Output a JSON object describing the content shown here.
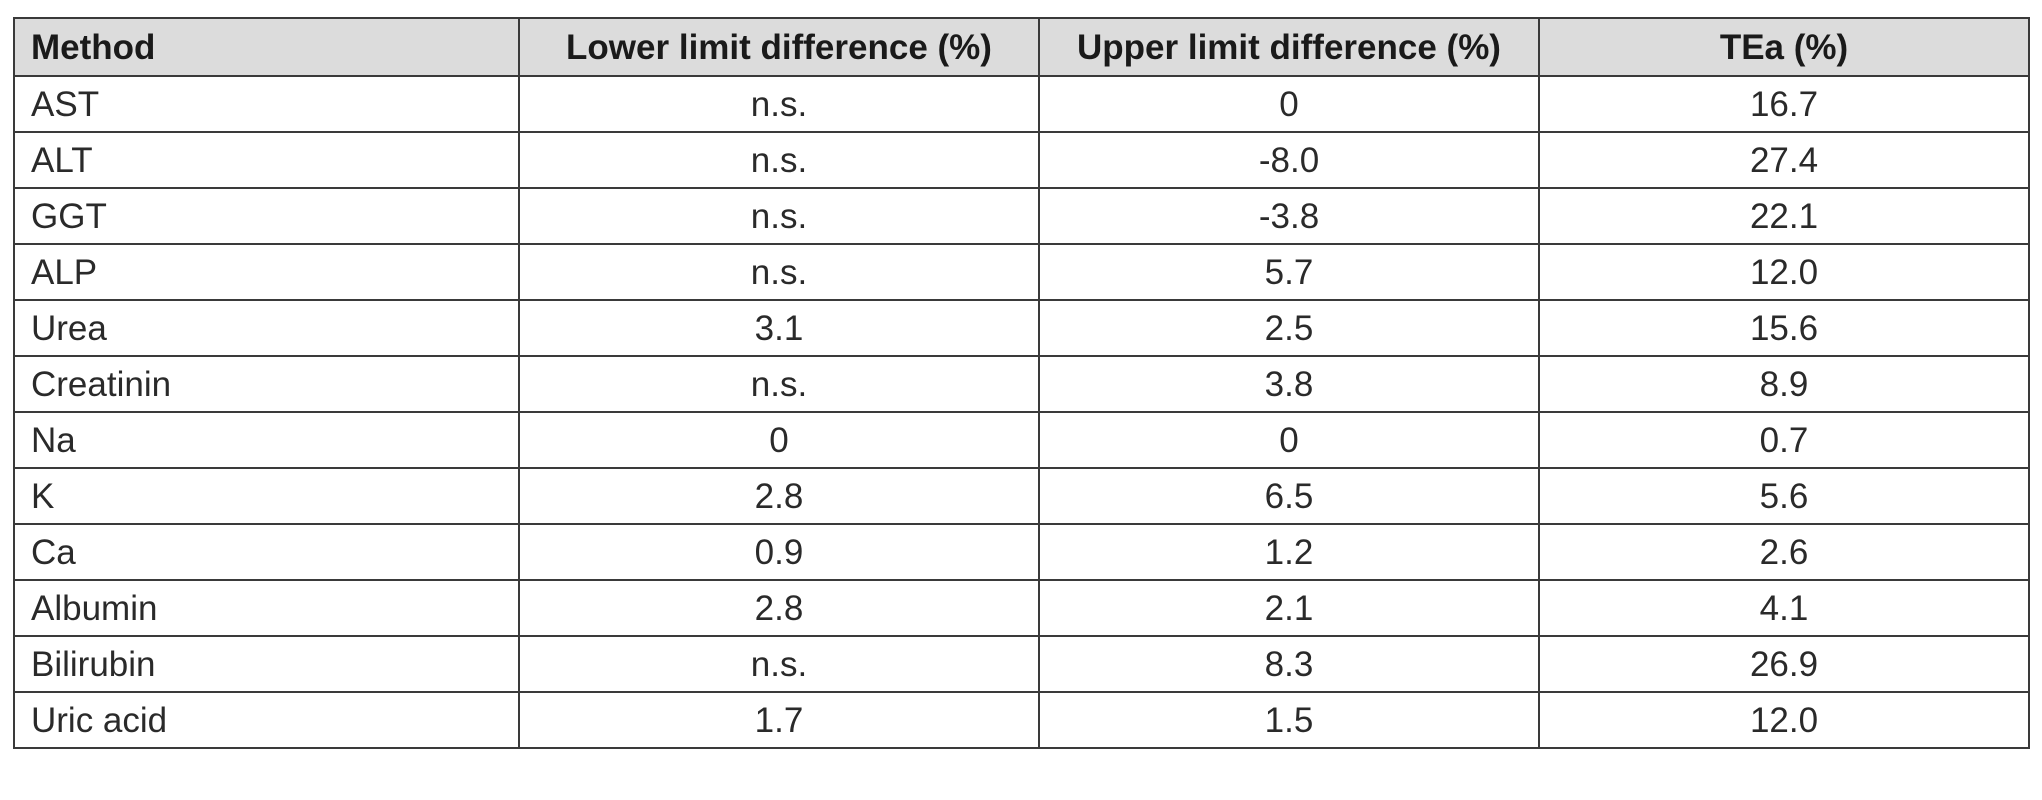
{
  "table": {
    "headers": [
      "Method",
      "Lower limit difference (%)",
      "Upper limit difference (%)",
      "TEa (%)"
    ],
    "rows": [
      [
        "AST",
        "n.s.",
        "0",
        "16.7"
      ],
      [
        "ALT",
        "n.s.",
        "-8.0",
        "27.4"
      ],
      [
        "GGT",
        "n.s.",
        "-3.8",
        "22.1"
      ],
      [
        "ALP",
        "n.s.",
        "5.7",
        "12.0"
      ],
      [
        "Urea",
        "3.1",
        "2.5",
        "15.6"
      ],
      [
        "Creatinin",
        "n.s.",
        "3.8",
        "8.9"
      ],
      [
        "Na",
        "0",
        "0",
        "0.7"
      ],
      [
        "K",
        "2.8",
        "6.5",
        "5.6"
      ],
      [
        "Ca",
        "0.9",
        "1.2",
        "2.6"
      ],
      [
        "Albumin",
        "2.8",
        "2.1",
        "4.1"
      ],
      [
        "Bilirubin",
        "n.s.",
        "8.3",
        "26.9"
      ],
      [
        "Uric acid",
        "1.7",
        "1.5",
        "12.0"
      ]
    ]
  },
  "colors": {
    "header_background": "#dcdcdc",
    "border": "#3a3a3a",
    "text": "#222222"
  }
}
